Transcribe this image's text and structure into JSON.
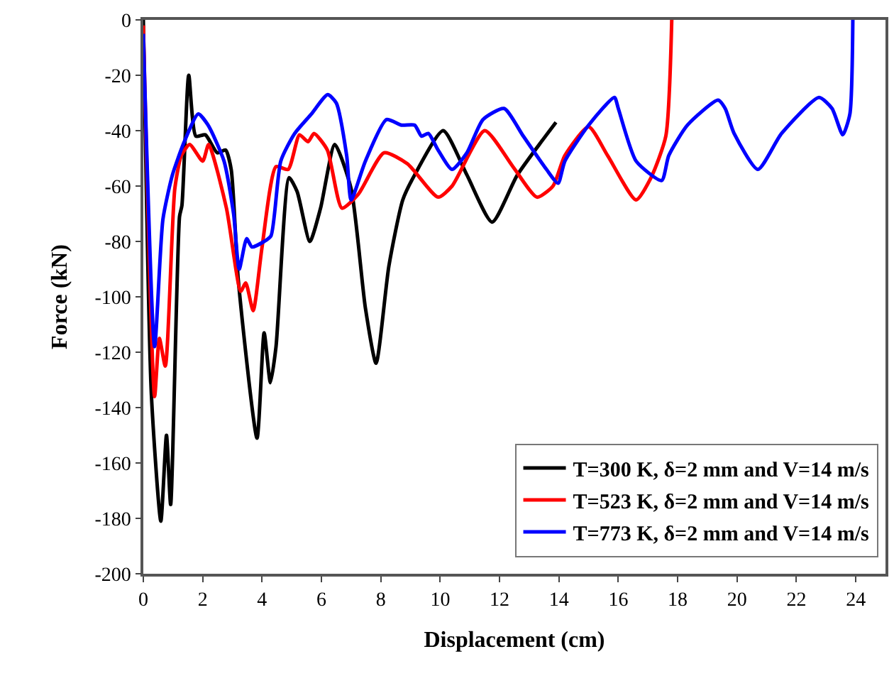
{
  "chart_data": {
    "type": "line",
    "xlabel": "Displacement (cm)",
    "ylabel": "Force (kN)",
    "xlim": [
      0,
      25
    ],
    "xticks": [
      0,
      2,
      4,
      6,
      8,
      10,
      12,
      14,
      16,
      18,
      20,
      22,
      24
    ],
    "ylim": [
      -200,
      0
    ],
    "yticks": [
      -200,
      -180,
      -160,
      -140,
      -120,
      -100,
      -80,
      -60,
      -40,
      -20,
      0
    ],
    "legend": "bottom right",
    "marker": "none",
    "line_style": "solid",
    "series": [
      {
        "name": "T=300 K, δ=2 mm and V=14 m/s",
        "color": "#000000",
        "x": [
          0,
          0.27,
          0.59,
          0.78,
          0.92,
          1.22,
          1.3,
          1.53,
          1.77,
          2.09,
          2.49,
          2.77,
          2.96,
          3.2,
          3.83,
          4.07,
          4.28,
          4.47,
          4.91,
          5.18,
          5.61,
          5.97,
          6.45,
          7.0,
          7.48,
          7.84,
          8.27,
          8.74,
          9.14,
          10.1,
          10.9,
          11.75,
          12.6,
          13.9
        ],
        "values": [
          0,
          -135,
          -181,
          -150,
          -175,
          -71,
          -67,
          -20,
          -42,
          -41.5,
          -48,
          -47,
          -54,
          -94,
          -151,
          -113,
          -131,
          -118,
          -57,
          -62,
          -80,
          -68,
          -45,
          -61,
          -104,
          -124,
          -89,
          -65,
          -56,
          -40,
          -56,
          -73,
          -56,
          -37
        ]
      },
      {
        "name": "T=523 K, δ=2 mm and V=14 m/s",
        "color": "#ff0000",
        "x": [
          0,
          0.38,
          0.54,
          0.74,
          1.06,
          1.28,
          1.56,
          2.0,
          2.2,
          2.8,
          3.28,
          3.45,
          3.7,
          4.0,
          4.47,
          4.88,
          5.26,
          5.55,
          5.75,
          6.2,
          6.69,
          7.24,
          8.11,
          8.9,
          9.93,
          10.4,
          11.5,
          12.45,
          13.26,
          13.8,
          14.2,
          15.0,
          15.64,
          16.6,
          17.1,
          17.6,
          17.8
        ],
        "values": [
          -2,
          -136,
          -115,
          -125,
          -61,
          -49,
          -45,
          -51,
          -45,
          -68,
          -98,
          -95,
          -105,
          -82,
          -53,
          -54,
          -41.5,
          -44,
          -41,
          -47,
          -68,
          -63,
          -48,
          -52,
          -64,
          -60,
          -40,
          -53,
          -64,
          -60,
          -49,
          -38.6,
          -49,
          -65,
          -57,
          -42,
          0
        ]
      },
      {
        "name": "T=773 K, δ=2 mm and V=14 m/s",
        "color": "#0000ff",
        "x": [
          0,
          0.38,
          0.66,
          0.98,
          1.38,
          1.85,
          2.18,
          2.72,
          3.04,
          3.23,
          3.48,
          3.66,
          4.07,
          4.3,
          4.63,
          5.1,
          5.66,
          6.21,
          6.5,
          6.85,
          7.0,
          7.48,
          8.19,
          8.7,
          9.14,
          9.37,
          9.6,
          9.93,
          10.4,
          10.9,
          11.44,
          12.15,
          12.8,
          13.58,
          13.97,
          14.2,
          15.0,
          15.87,
          16.0,
          16.6,
          17.46,
          17.7,
          18.33,
          19.36,
          19.6,
          19.9,
          20.7,
          21.5,
          22.76,
          23.2,
          23.56,
          23.8,
          23.9
        ],
        "values": [
          -5,
          -118,
          -72,
          -56,
          -44,
          -34,
          -38,
          -51,
          -70,
          -90,
          -79,
          -82,
          -80,
          -78,
          -51,
          -41,
          -34,
          -27,
          -30,
          -49,
          -65,
          -51,
          -36,
          -38,
          -38,
          -42,
          -41,
          -47,
          -54,
          -48,
          -36,
          -32,
          -42,
          -54,
          -59,
          -51,
          -38,
          -28,
          -32,
          -51,
          -58,
          -49,
          -38,
          -29,
          -32,
          -41,
          -54,
          -41,
          -28,
          -32,
          -41.5,
          -34,
          0
        ]
      }
    ]
  }
}
